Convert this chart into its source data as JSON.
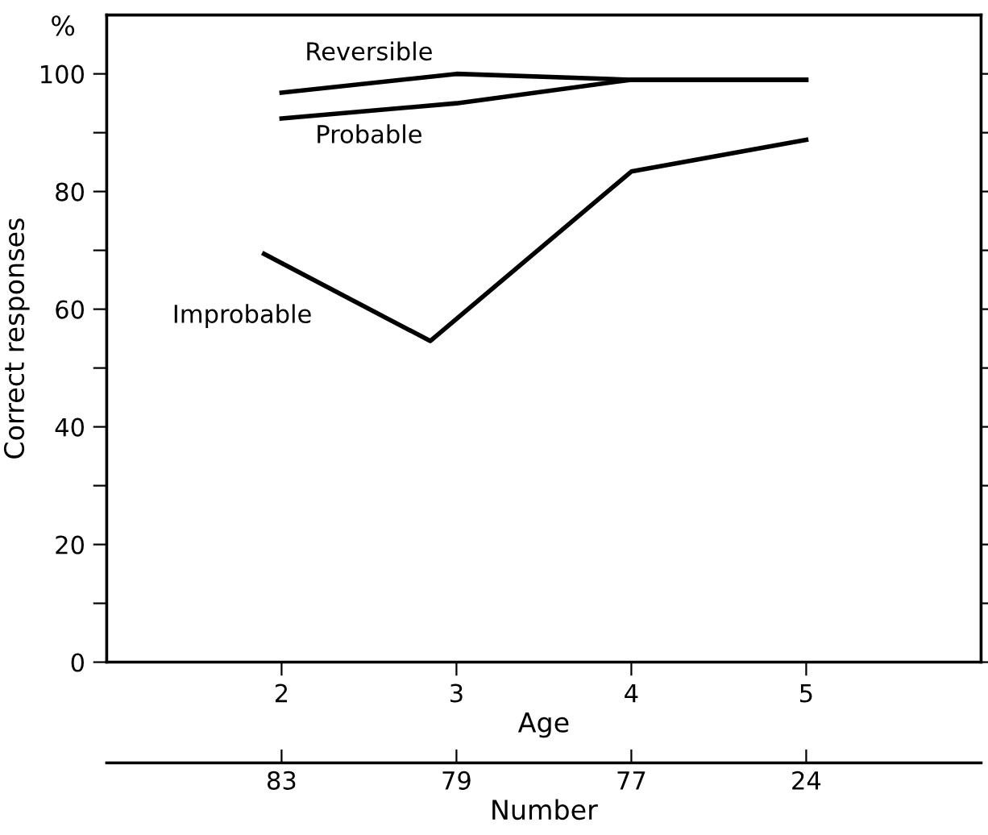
{
  "chart_data": {
    "type": "line",
    "xlabel": "Age",
    "ylabel": "Correct responses",
    "x2label": "Number",
    "annotations": [
      "%",
      "83",
      "79",
      "77",
      "24"
    ],
    "xlim": [
      1,
      6
    ],
    "xticks": [
      2,
      3,
      4,
      5
    ],
    "ylim": [
      0,
      110
    ],
    "yticks": [
      0,
      {
        "value": 10,
        "label": null
      },
      20,
      {
        "value": 30,
        "label": null
      },
      40,
      {
        "value": 50,
        "label": null
      },
      60,
      {
        "value": 70,
        "label": null
      },
      80,
      {
        "value": 90,
        "label": null
      },
      100
    ],
    "grid": false,
    "legend": false,
    "marker": "none",
    "line_style": "solid",
    "series": [
      {
        "name": "Reversible",
        "color": "#000000",
        "x": [
          2,
          3,
          4,
          5
        ],
        "values": [
          96.8,
          100,
          99,
          99
        ]
      },
      {
        "name": "Probable",
        "color": "#000000",
        "x": [
          2,
          3,
          4,
          5
        ],
        "values": [
          92.4,
          95,
          99,
          99
        ]
      },
      {
        "name": "Improbable",
        "color": "#000000",
        "x": [
          1.9,
          2.85,
          4,
          5
        ],
        "values": [
          69.4,
          54.6,
          83.4,
          88.8
        ]
      }
    ]
  }
}
